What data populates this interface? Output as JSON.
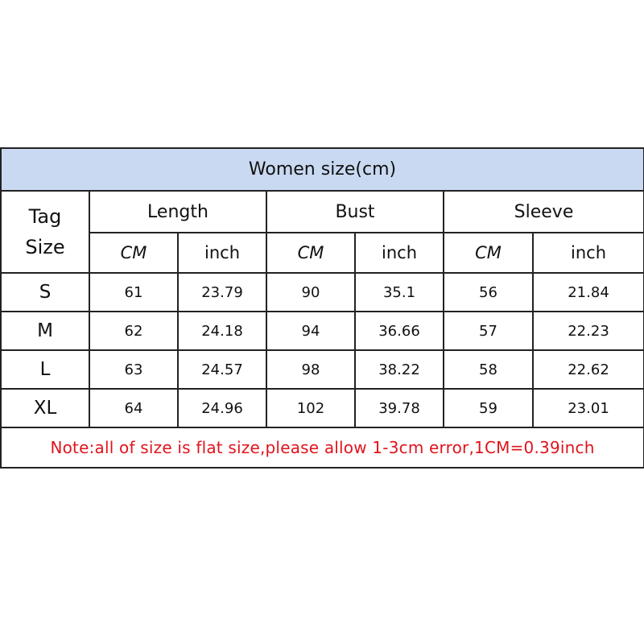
{
  "title": "Women size(cm)",
  "tag_header": [
    "Tag",
    "Size"
  ],
  "groups": [
    "Length",
    "Bust",
    "Sleeve"
  ],
  "units": [
    "CM",
    "inch",
    "CM",
    "inch",
    "CM",
    "inch"
  ],
  "rows": [
    {
      "size": "S",
      "values": [
        "61",
        "23.79",
        "90",
        "35.1",
        "56",
        "21.84"
      ]
    },
    {
      "size": "M",
      "values": [
        "62",
        "24.18",
        "94",
        "36.66",
        "57",
        "22.23"
      ]
    },
    {
      "size": "L",
      "values": [
        "63",
        "24.57",
        "98",
        "38.22",
        "58",
        "22.62"
      ]
    },
    {
      "size": "XL",
      "values": [
        "64",
        "24.96",
        "102",
        "39.78",
        "59",
        "23.01"
      ]
    }
  ],
  "note": "Note:all of size is flat size,please allow 1-3cm error,1CM=0.39inch",
  "colors": {
    "header_bg": "#c9d9f1",
    "note_text": "#e0141c",
    "border": "#222222"
  }
}
